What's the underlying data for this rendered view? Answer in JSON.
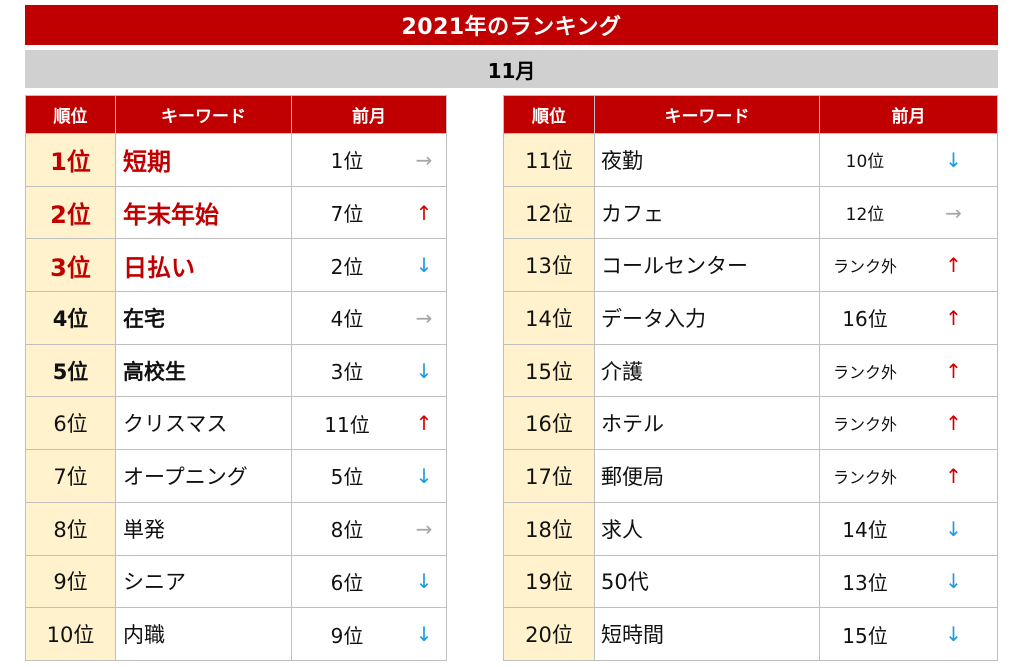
{
  "chart_data": {
    "type": "table",
    "title": "2021年のランキング",
    "subtitle": "11月",
    "columns": [
      "順位",
      "キーワード",
      "前月"
    ],
    "rows": [
      {
        "rank": "1位",
        "keyword": "短期",
        "previous": "1位",
        "trend": "→"
      },
      {
        "rank": "2位",
        "keyword": "年末年始",
        "previous": "7位",
        "trend": "↑"
      },
      {
        "rank": "3位",
        "keyword": "日払い",
        "previous": "2位",
        "trend": "↓"
      },
      {
        "rank": "4位",
        "keyword": "在宅",
        "previous": "4位",
        "trend": "→"
      },
      {
        "rank": "5位",
        "keyword": "高校生",
        "previous": "3位",
        "trend": "↓"
      },
      {
        "rank": "6位",
        "keyword": "クリスマス",
        "previous": "11位",
        "trend": "↑"
      },
      {
        "rank": "7位",
        "keyword": "オープニング",
        "previous": "5位",
        "trend": "↓"
      },
      {
        "rank": "8位",
        "keyword": "単発",
        "previous": "8位",
        "trend": "→"
      },
      {
        "rank": "9位",
        "keyword": "シニア",
        "previous": "6位",
        "trend": "↓"
      },
      {
        "rank": "10位",
        "keyword": "内職",
        "previous": "9位",
        "trend": "↓"
      },
      {
        "rank": "11位",
        "keyword": "夜勤",
        "previous": "10位",
        "trend": "↓"
      },
      {
        "rank": "12位",
        "keyword": "カフェ",
        "previous": "12位",
        "trend": "→"
      },
      {
        "rank": "13位",
        "keyword": "コールセンター",
        "previous": "ランク外",
        "trend": "↑"
      },
      {
        "rank": "14位",
        "keyword": "データ入力",
        "previous": "16位",
        "trend": "↑"
      },
      {
        "rank": "15位",
        "keyword": "介護",
        "previous": "ランク外",
        "trend": "↑"
      },
      {
        "rank": "16位",
        "keyword": "ホテル",
        "previous": "ランク外",
        "trend": "↑"
      },
      {
        "rank": "17位",
        "keyword": "郵便局",
        "previous": "ランク外",
        "trend": "↑"
      },
      {
        "rank": "18位",
        "keyword": "求人",
        "previous": "14位",
        "trend": "↓"
      },
      {
        "rank": "19位",
        "keyword": "50代",
        "previous": "13位",
        "trend": "↓"
      },
      {
        "rank": "20位",
        "keyword": "短時間",
        "previous": "15位",
        "trend": "↓"
      }
    ]
  },
  "colors": {
    "accent": "#C00000",
    "banner": "#D0D0D0",
    "rankbg": "#FFF2CC",
    "grid": "#BFBFBF",
    "up": "#D00000",
    "down": "#1E9BE0",
    "same": "#A6A6A6"
  }
}
